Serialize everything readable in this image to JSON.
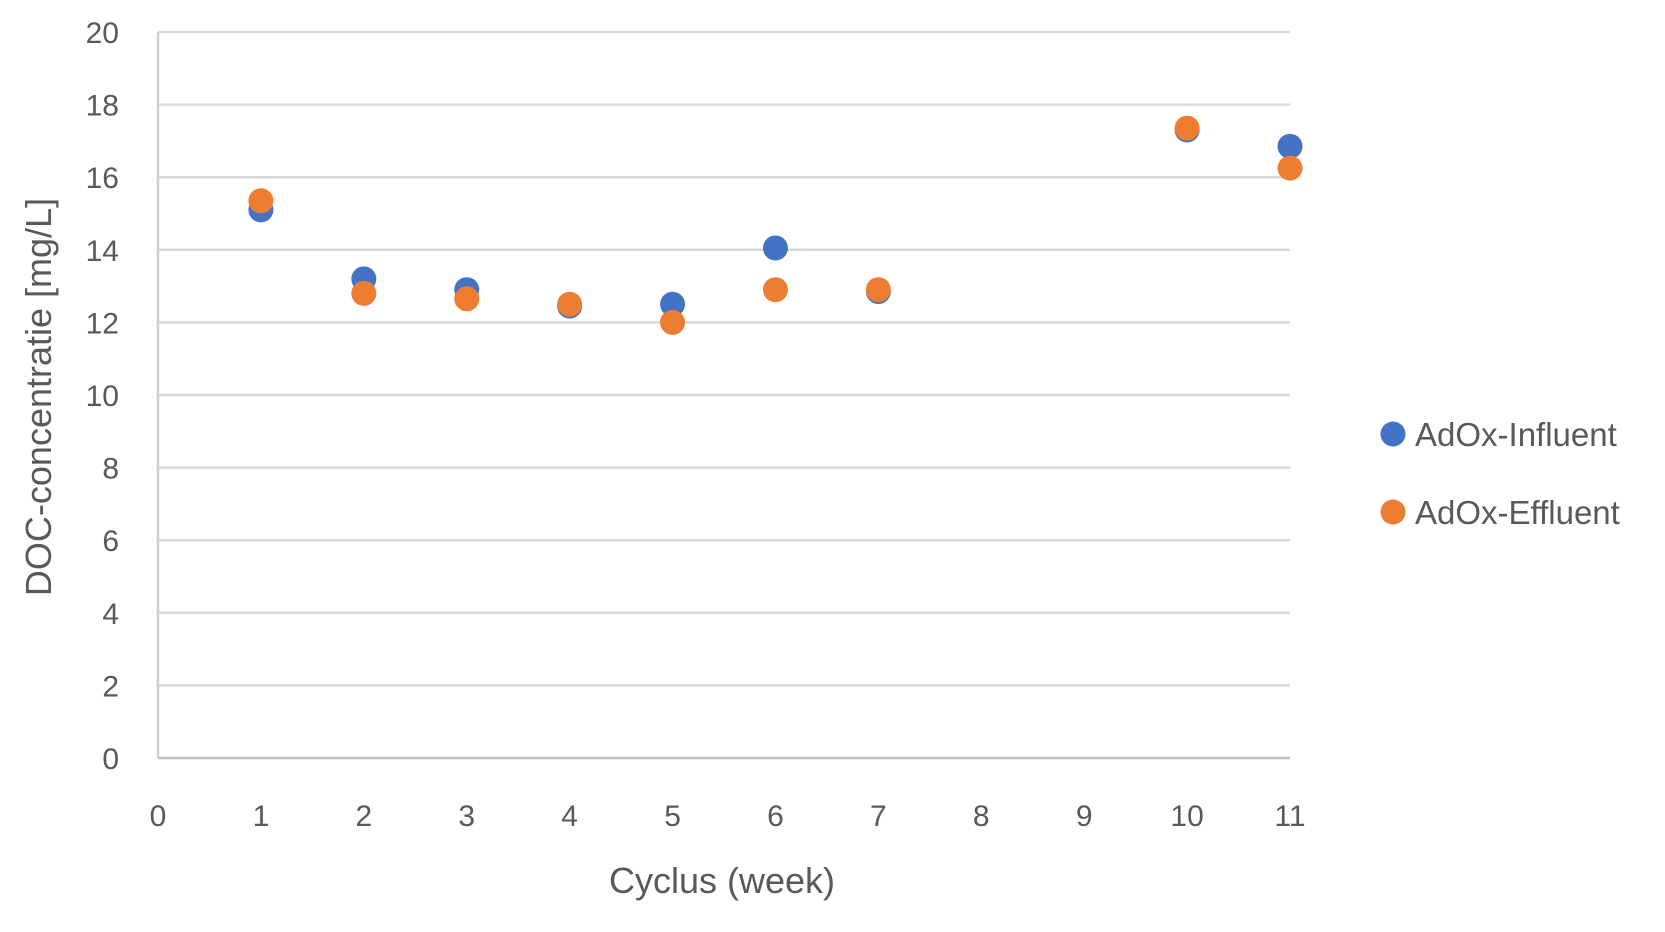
{
  "chart_data": {
    "type": "scatter",
    "title": "",
    "xlabel": "Cyclus (week)",
    "ylabel": "DOC-concentratie [mg/L]",
    "ylim": [
      0,
      20
    ],
    "y_ticks": [
      "0",
      "2",
      "4",
      "6",
      "8",
      "10",
      "12",
      "14",
      "16",
      "18",
      "20"
    ],
    "x_categories": [
      "0",
      "1",
      "2",
      "3",
      "4",
      "5",
      "6",
      "7",
      "8",
      "9",
      "10",
      "11"
    ],
    "grid": "horizontal",
    "legend_position": "right",
    "series": [
      {
        "name": "AdOx-Influent",
        "color": "#4472C4",
        "x": [
          "1",
          "2",
          "3",
          "4",
          "5",
          "6",
          "7",
          "10",
          "11"
        ],
        "y": [
          15.1,
          13.2,
          12.9,
          12.45,
          12.5,
          14.05,
          12.85,
          17.3,
          16.85
        ]
      },
      {
        "name": "AdOx-Effluent",
        "color": "#ED7D31",
        "x": [
          "1",
          "2",
          "3",
          "4",
          "5",
          "6",
          "7",
          "10",
          "11"
        ],
        "y": [
          15.35,
          12.8,
          12.65,
          12.5,
          12.0,
          12.9,
          12.9,
          17.35,
          16.25
        ]
      }
    ]
  }
}
